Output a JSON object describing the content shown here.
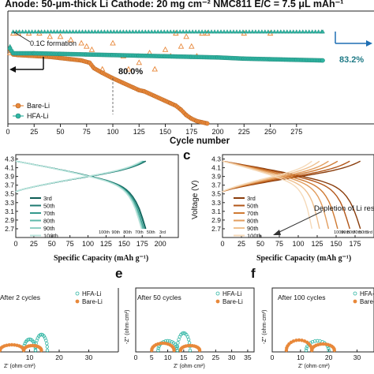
{
  "header": {
    "text": "Anode: 50-μm-thick Li Cathode: 20 mg cm⁻² NMC811 E/C = 7.5 μL mAh⁻¹"
  },
  "colors": {
    "bare": "#e8883a",
    "hfa": "#2fb5a3",
    "arrow": "#1f6fb4",
    "dark": "#111111"
  },
  "chart_data": [
    {
      "id": "a",
      "type": "scatter",
      "title": "",
      "xlabel": "Cycle number",
      "xlim": [
        0,
        300
      ],
      "xticks": [
        0,
        25,
        50,
        75,
        100,
        125,
        150,
        175,
        200,
        225,
        250,
        275
      ],
      "annotations": {
        "formation": "0.1C formation",
        "bare_ret": "80.0%",
        "hfa_ret": "83.2%"
      },
      "legend": {
        "position": "bottom-left",
        "entries": [
          "Bare-Li",
          "HFA-Li"
        ]
      },
      "series": [
        {
          "name": "Bare-Li",
          "capacity": [
            [
              2,
              196
            ],
            [
              5,
              188
            ],
            [
              10,
              187
            ],
            [
              20,
              186
            ],
            [
              30,
              185
            ],
            [
              40,
              184
            ],
            [
              50,
              182
            ],
            [
              60,
              180
            ],
            [
              70,
              178
            ],
            [
              78,
              174
            ],
            [
              82,
              165
            ],
            [
              90,
              157
            ],
            [
              100,
              148
            ],
            [
              110,
              140
            ],
            [
              120,
              132
            ],
            [
              125,
              128
            ],
            [
              130,
              126
            ],
            [
              140,
              118
            ],
            [
              150,
              110
            ],
            [
              155,
              106
            ],
            [
              160,
              102
            ],
            [
              165,
              95
            ],
            [
              170,
              86
            ],
            [
              175,
              80
            ],
            [
              180,
              76
            ],
            [
              185,
              74
            ],
            [
              190,
              72
            ]
          ],
          "efficiency": [
            [
              2,
              93
            ],
            [
              5,
              99
            ],
            [
              10,
              99
            ],
            [
              20,
              99
            ],
            [
              30,
              99
            ],
            [
              40,
              98
            ],
            [
              50,
              98
            ],
            [
              60,
              97
            ],
            [
              70,
              96
            ],
            [
              75,
              95
            ],
            [
              80,
              94
            ],
            [
              90,
              88
            ],
            [
              100,
              96
            ],
            [
              110,
              92
            ],
            [
              115,
              88
            ],
            [
              125,
              90
            ],
            [
              135,
              93
            ],
            [
              140,
              88
            ],
            [
              150,
              94
            ],
            [
              155,
              92
            ],
            [
              160,
              99
            ],
            [
              165,
              95
            ],
            [
              170,
              98
            ],
            [
              175,
              95
            ],
            [
              180,
              92
            ],
            [
              185,
              99
            ],
            [
              190,
              99
            ],
            [
              225,
              99
            ],
            [
              250,
              99
            ]
          ]
        },
        {
          "name": "HFA-Li",
          "capacity": [
            [
              2,
              198
            ],
            [
              5,
              190
            ],
            [
              25,
              190
            ],
            [
              50,
              189
            ],
            [
              75,
              188
            ],
            [
              100,
              187
            ],
            [
              125,
              186
            ],
            [
              150,
              185
            ],
            [
              175,
              184
            ],
            [
              200,
              183
            ],
            [
              225,
              181
            ],
            [
              250,
              180
            ],
            [
              275,
              179
            ],
            [
              300,
              178
            ]
          ],
          "efficiency": [
            [
              2,
              95
            ],
            [
              5,
              99.5
            ],
            [
              300,
              99.5
            ]
          ]
        }
      ]
    },
    {
      "id": "b",
      "type": "line",
      "xlabel": "Specific Capacity (mAh g⁻¹)",
      "xlim": [
        0,
        225
      ],
      "xticks": [
        0,
        25,
        50,
        75,
        100,
        125,
        150,
        175,
        200
      ],
      "ylim": [
        2.5,
        4.4
      ],
      "yticks": [
        2.7,
        2.9,
        3.1,
        3.3,
        3.5,
        3.7,
        3.9,
        4.1,
        4.3
      ],
      "legend": [
        "3rd",
        "50th",
        "70th",
        "80th",
        "90th",
        "100th"
      ],
      "order_labels": [
        "100th",
        "90th",
        "80th",
        "70th",
        "50th",
        "3rd"
      ],
      "series_caps": [
        180,
        179,
        177,
        176,
        175,
        174
      ]
    },
    {
      "id": "c",
      "type": "line",
      "xlabel": "Specific Capacity (mAh g⁻¹)",
      "ylabel": "Voltage (V)",
      "xlim": [
        0,
        200
      ],
      "xticks": [
        0,
        25,
        50,
        75,
        100,
        125,
        150,
        175
      ],
      "ylim": [
        2.5,
        4.4
      ],
      "yticks": [
        2.7,
        2.9,
        3.1,
        3.3,
        3.5,
        3.7,
        3.9,
        4.1,
        4.3
      ],
      "annotation": "Depletion of Li reservoir",
      "legend": [
        "3rd",
        "50th",
        "70th",
        "80th",
        "90th",
        "100th"
      ],
      "order_labels": [
        "100th",
        "90th",
        "80th",
        "70th",
        "50th",
        "3rd"
      ],
      "series_caps": [
        182,
        168,
        152,
        140,
        128,
        118
      ]
    },
    {
      "id": "d",
      "type": "scatter",
      "title": "After 2 cycles",
      "xlabel": "Z' (ohm·cm²)",
      "xticks": [
        10,
        20,
        30
      ],
      "legend": [
        "HFA-Li",
        "Bare-Li"
      ]
    },
    {
      "id": "e",
      "type": "scatter",
      "title": "After 50 cycles",
      "xlabel": "Z' (ohm·cm²)",
      "ylabel": "-Z'' (ohm·cm²)",
      "xticks": [
        0,
        5,
        10,
        15,
        20,
        25,
        30,
        35
      ],
      "legend": [
        "HFA-Li",
        "Bare-Li"
      ]
    },
    {
      "id": "f",
      "type": "scatter",
      "title": "After 100 cycles",
      "xlabel": "Z' (ohm·cm²)",
      "ylabel": "-Z'' (ohm·cm²)",
      "xticks": [
        0,
        10,
        20,
        30
      ],
      "legend": [
        "HFA-Li",
        "Bare-Li"
      ]
    }
  ],
  "panel_letters": {
    "c": "c",
    "e": "e",
    "f": "f"
  }
}
